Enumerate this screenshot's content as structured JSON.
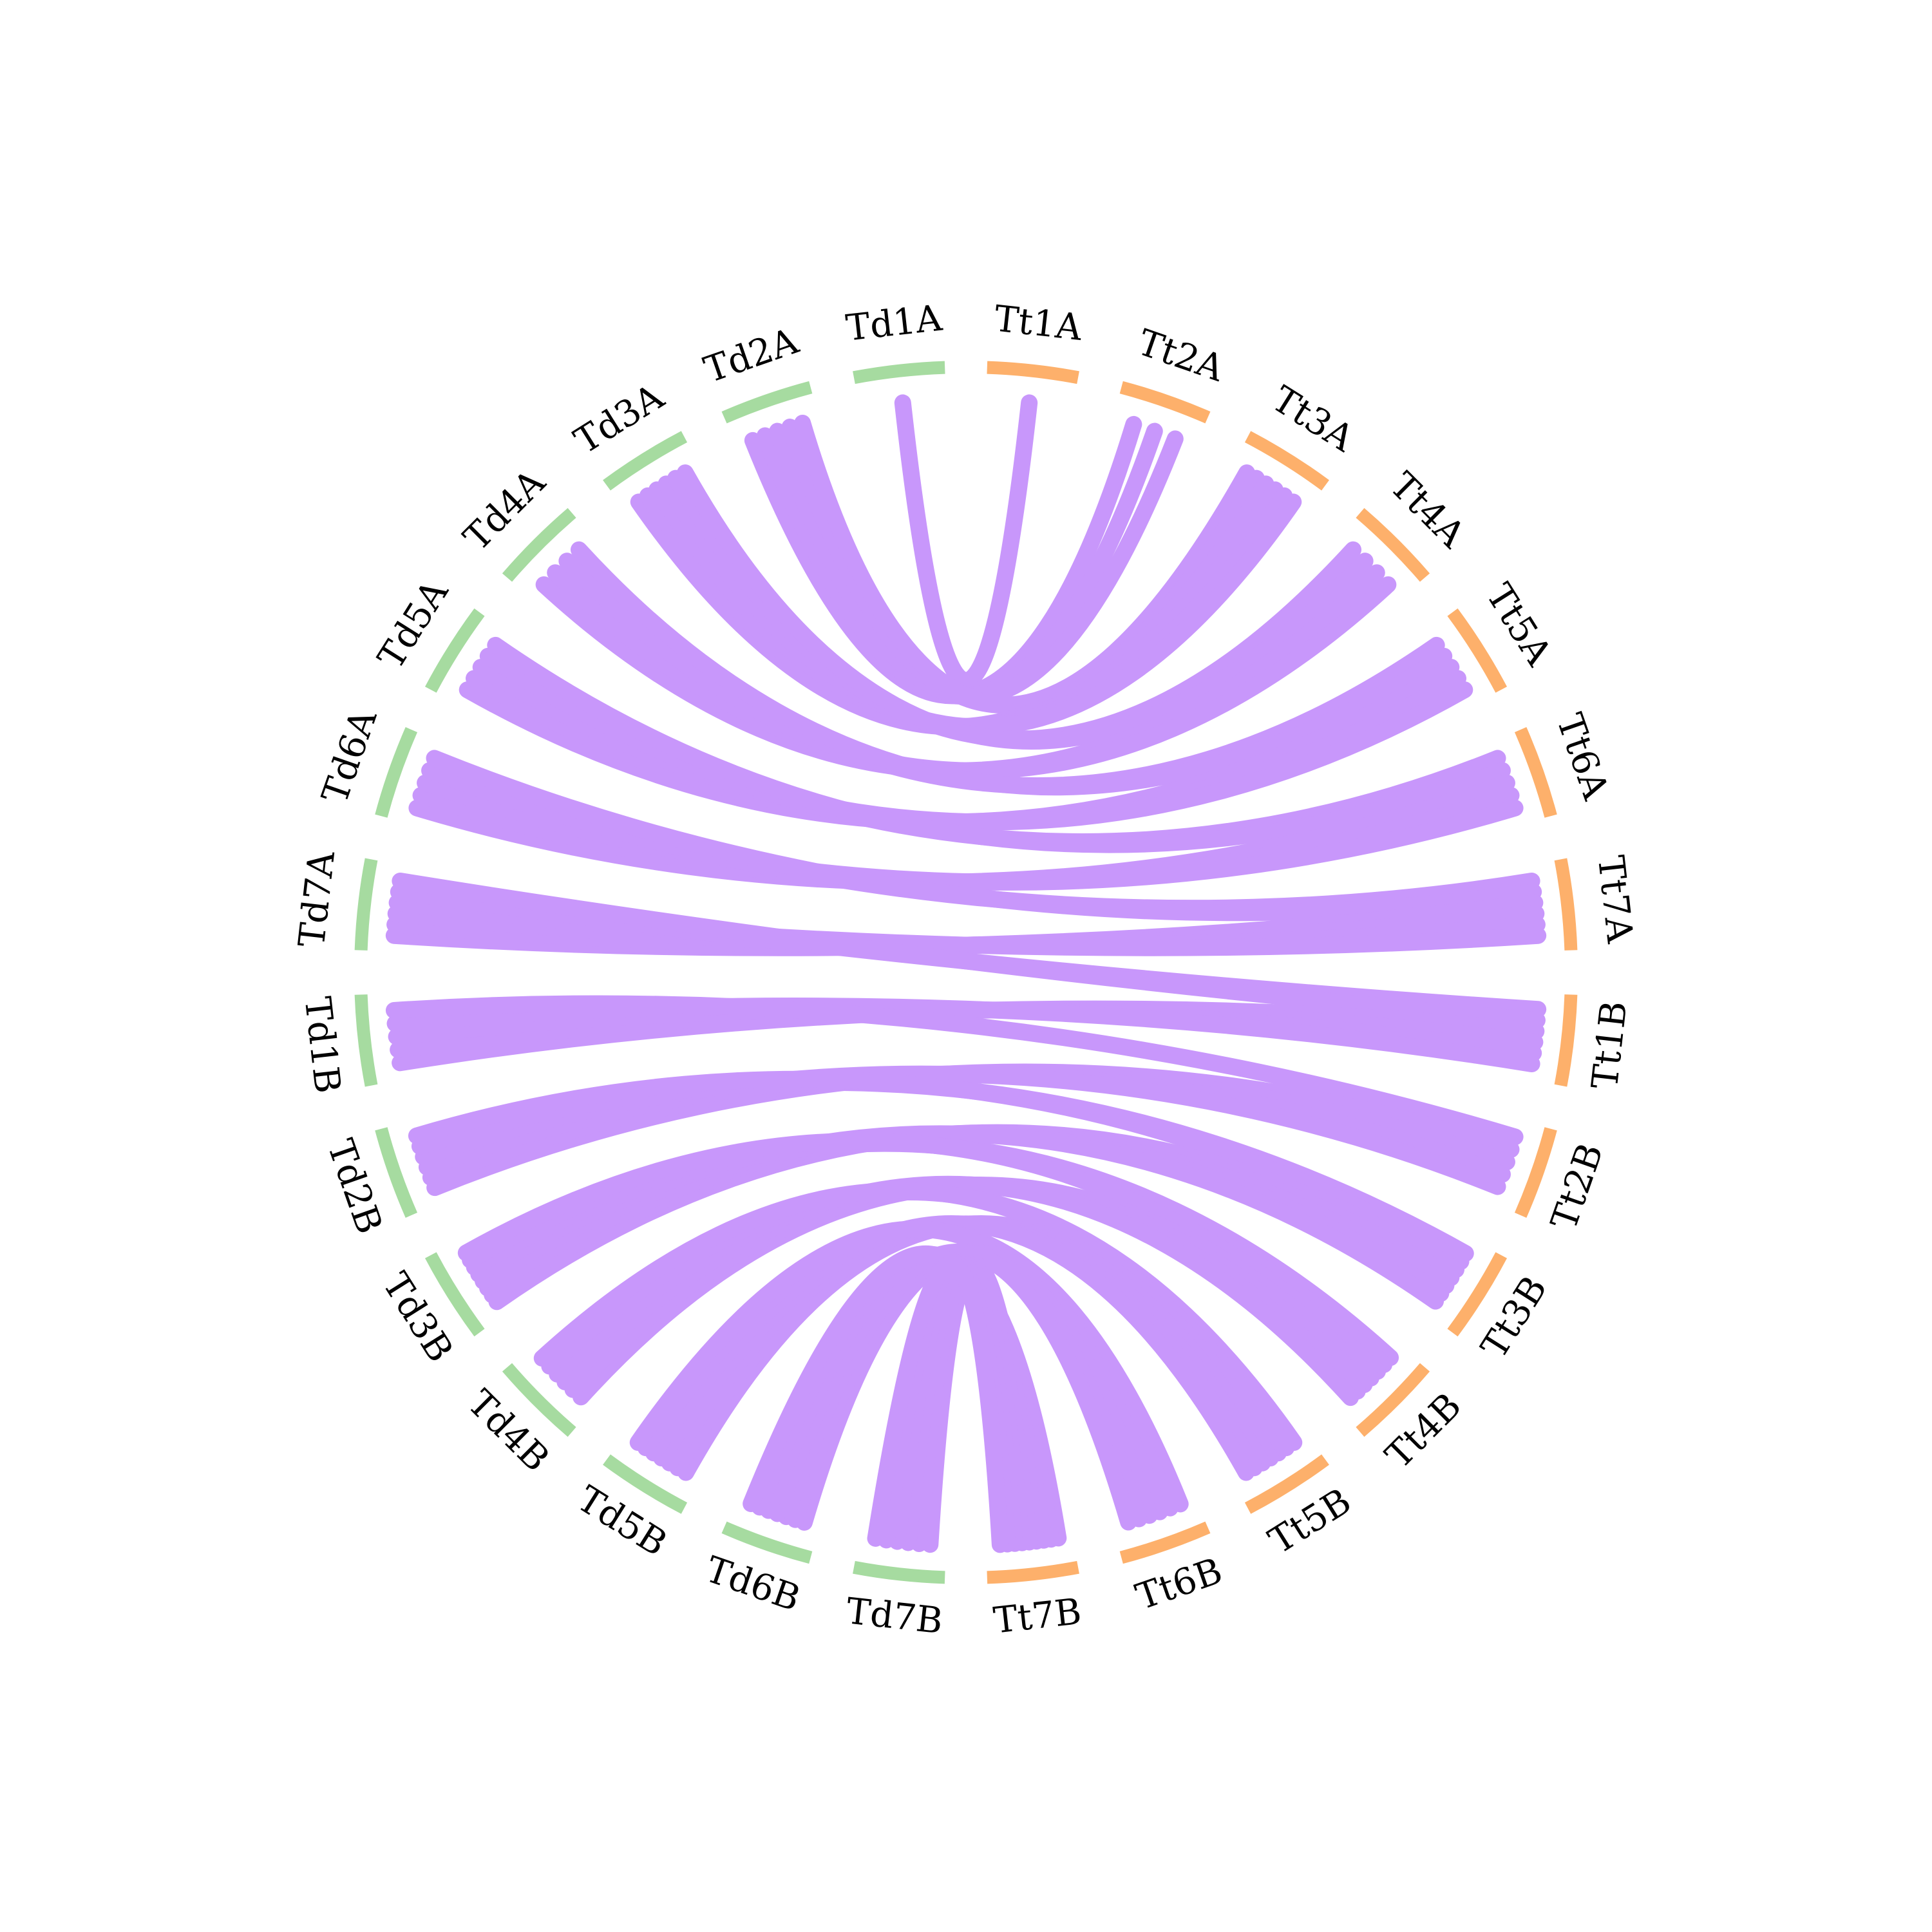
{
  "colors": {
    "td": "#a6dba0",
    "tt": "#fdb06b",
    "link": "#c897fb",
    "label": "#000000"
  },
  "segments_left": [
    "Td1A",
    "Td2A",
    "Td3A",
    "Td4A",
    "Td5A",
    "Td6A",
    "Td7A",
    "Td1B",
    "Td2B",
    "Td3B",
    "Td4B",
    "Td5B",
    "Td6B",
    "Td7B"
  ],
  "segments_right": [
    "Tt1A",
    "Tt2A",
    "Tt3A",
    "Tt4A",
    "Tt5A",
    "Tt6A",
    "Tt7A",
    "Tt1B",
    "Tt2B",
    "Tt3B",
    "Tt4B",
    "Tt5B",
    "Tt6B",
    "Tt7B"
  ],
  "links": [
    {
      "from": "Td1A",
      "to": "Tt1A",
      "count": 1
    },
    {
      "from": "Td2A",
      "to": "Tt2A",
      "count": 3
    },
    {
      "from": "Td2A",
      "to": "Tt3A",
      "count": 2
    },
    {
      "from": "Td3A",
      "to": "Tt3A",
      "count": 4
    },
    {
      "from": "Td3A",
      "to": "Tt4A",
      "count": 2
    },
    {
      "from": "Td4A",
      "to": "Tt4A",
      "count": 2
    },
    {
      "from": "Td4A",
      "to": "Tt5A",
      "count": 2
    },
    {
      "from": "Td5A",
      "to": "Tt5A",
      "count": 3
    },
    {
      "from": "Td5A",
      "to": "Tt6A",
      "count": 2
    },
    {
      "from": "Td6A",
      "to": "Tt6A",
      "count": 3
    },
    {
      "from": "Td6A",
      "to": "Tt7A",
      "count": 2
    },
    {
      "from": "Td7A",
      "to": "Tt7A",
      "count": 4
    },
    {
      "from": "Td7A",
      "to": "Tt1B",
      "count": 2
    },
    {
      "from": "Td1B",
      "to": "Tt1B",
      "count": 4
    },
    {
      "from": "Td1B",
      "to": "Tt2B",
      "count": 1
    },
    {
      "from": "Td2B",
      "to": "Tt2B",
      "count": 4
    },
    {
      "from": "Td2B",
      "to": "Tt3B",
      "count": 2
    },
    {
      "from": "Td3B",
      "to": "Tt3B",
      "count": 5
    },
    {
      "from": "Td3B",
      "to": "Tt4B",
      "count": 3
    },
    {
      "from": "Td4B",
      "to": "Tt4B",
      "count": 4
    },
    {
      "from": "Td4B",
      "to": "Tt5B",
      "count": 2
    },
    {
      "from": "Td5B",
      "to": "Tt5B",
      "count": 5
    },
    {
      "from": "Td5B",
      "to": "Tt6B",
      "count": 2
    },
    {
      "from": "Td6B",
      "to": "Tt6B",
      "count": 4
    },
    {
      "from": "Td6B",
      "to": "Tt7B",
      "count": 3
    },
    {
      "from": "Td7B",
      "to": "Tt7B",
      "count": 6
    }
  ]
}
